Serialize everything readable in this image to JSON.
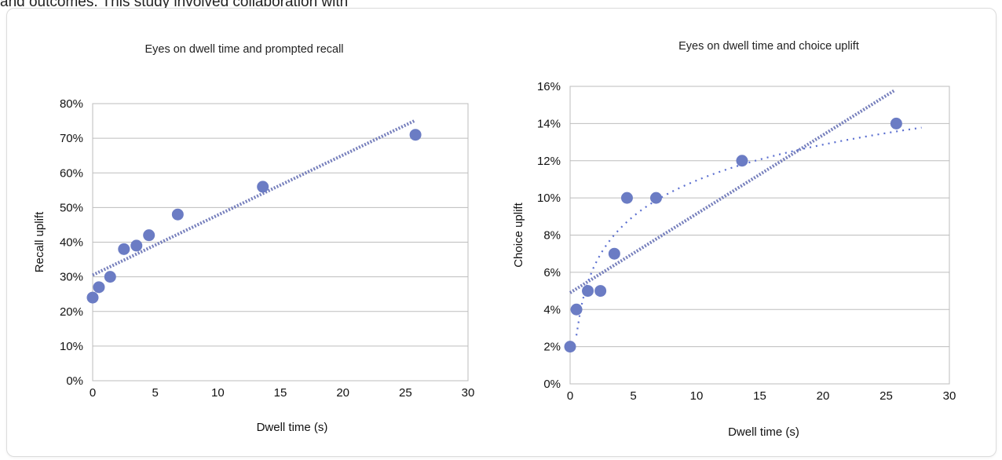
{
  "page": {
    "intro_text": "and outcomes. This study involved collaboration with"
  },
  "colors": {
    "point": "#6b7cc4",
    "trendline": "#6f78b8",
    "grid": "#bdbdbd"
  },
  "chart_data": [
    {
      "type": "scatter",
      "title": "Eyes on dwell time and prompted recall",
      "xlabel": "Dwell time (s)",
      "ylabel": "Recall uplift",
      "xlim": [
        0,
        30
      ],
      "ylim": [
        0,
        0.8
      ],
      "x_ticks": [
        0,
        5,
        10,
        15,
        20,
        25,
        30
      ],
      "x_tick_labels": [
        "0",
        "5",
        "10",
        "15",
        "20",
        "25",
        "30"
      ],
      "y_ticks": [
        0,
        0.1,
        0.2,
        0.3,
        0.4,
        0.5,
        0.6,
        0.7,
        0.8
      ],
      "y_tick_labels": [
        "0%",
        "10%",
        "20%",
        "30%",
        "40%",
        "50%",
        "60%",
        "70%",
        "80%"
      ],
      "grid": true,
      "points": [
        {
          "x": 0,
          "y": 0.24
        },
        {
          "x": 0.5,
          "y": 0.27
        },
        {
          "x": 1.4,
          "y": 0.3
        },
        {
          "x": 2.5,
          "y": 0.38
        },
        {
          "x": 3.5,
          "y": 0.39
        },
        {
          "x": 4.5,
          "y": 0.42
        },
        {
          "x": 6.8,
          "y": 0.48
        },
        {
          "x": 13.6,
          "y": 0.56
        },
        {
          "x": 25.8,
          "y": 0.71
        }
      ],
      "trendlines": [
        {
          "kind": "linear",
          "from": [
            0,
            0.305
          ],
          "to": [
            25.7,
            0.75
          ]
        }
      ]
    },
    {
      "type": "scatter",
      "title": "Eyes on dwell time and choice uplift",
      "xlabel": "Dwell time (s)",
      "ylabel": "Choice uplift",
      "xlim": [
        0,
        30
      ],
      "ylim": [
        0,
        0.16
      ],
      "x_ticks": [
        0,
        5,
        10,
        15,
        20,
        25,
        30
      ],
      "x_tick_labels": [
        "0",
        "5",
        "10",
        "15",
        "20",
        "25",
        "30"
      ],
      "y_ticks": [
        0,
        0.02,
        0.04,
        0.06,
        0.08,
        0.1,
        0.12,
        0.14,
        0.16
      ],
      "y_tick_labels": [
        "0%",
        "2%",
        "4%",
        "6%",
        "8%",
        "10%",
        "12%",
        "14%",
        "16%"
      ],
      "grid": true,
      "points": [
        {
          "x": 0,
          "y": 0.02
        },
        {
          "x": 0.5,
          "y": 0.04
        },
        {
          "x": 1.4,
          "y": 0.05
        },
        {
          "x": 2.4,
          "y": 0.05
        },
        {
          "x": 3.5,
          "y": 0.07
        },
        {
          "x": 4.5,
          "y": 0.1
        },
        {
          "x": 6.8,
          "y": 0.1
        },
        {
          "x": 13.6,
          "y": 0.12
        },
        {
          "x": 25.8,
          "y": 0.14
        }
      ],
      "trendlines": [
        {
          "kind": "linear",
          "from": [
            0,
            0.049
          ],
          "to": [
            25.7,
            0.158
          ]
        },
        {
          "kind": "logarithmic",
          "from_x": 0.5,
          "to_x": 27.8
        }
      ]
    }
  ]
}
